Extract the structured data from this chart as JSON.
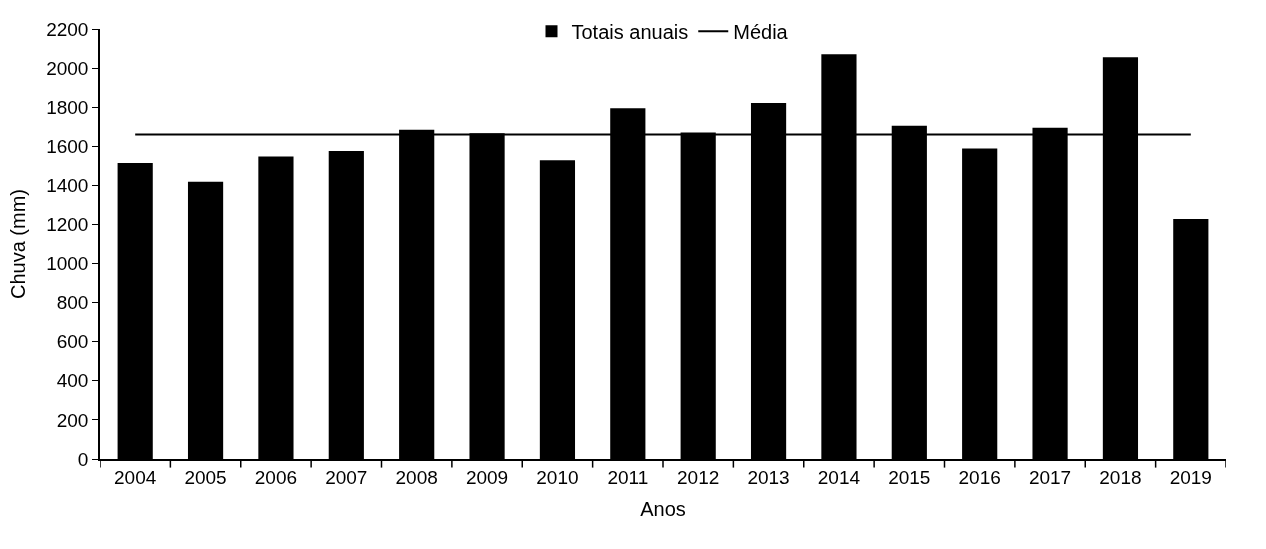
{
  "chart_data": {
    "type": "bar",
    "xlabel": "Anos",
    "ylabel": "Chuva (mm)",
    "categories": [
      "2004",
      "2005",
      "2006",
      "2007",
      "2008",
      "2009",
      "2010",
      "2011",
      "2012",
      "2013",
      "2014",
      "2015",
      "2016",
      "2017",
      "2018",
      "2019"
    ],
    "series": [
      {
        "name": "Totais anuais",
        "color": "#000000",
        "values": [
          1515,
          1418,
          1548,
          1576,
          1685,
          1666,
          1528,
          1795,
          1670,
          1821,
          2071,
          1705,
          1588,
          1695,
          2055,
          1228
        ]
      },
      {
        "name": "Média",
        "type": "line",
        "color": "#000000",
        "values": [
          1660,
          1660,
          1660,
          1660,
          1660,
          1660,
          1660,
          1660,
          1660,
          1660,
          1660,
          1660,
          1660,
          1660,
          1660,
          1660
        ]
      }
    ],
    "ylim": [
      0,
      2200
    ],
    "yticks": [
      0,
      200,
      400,
      600,
      800,
      1000,
      1200,
      1400,
      1600,
      1800,
      2000,
      2200
    ],
    "legend": "top"
  }
}
